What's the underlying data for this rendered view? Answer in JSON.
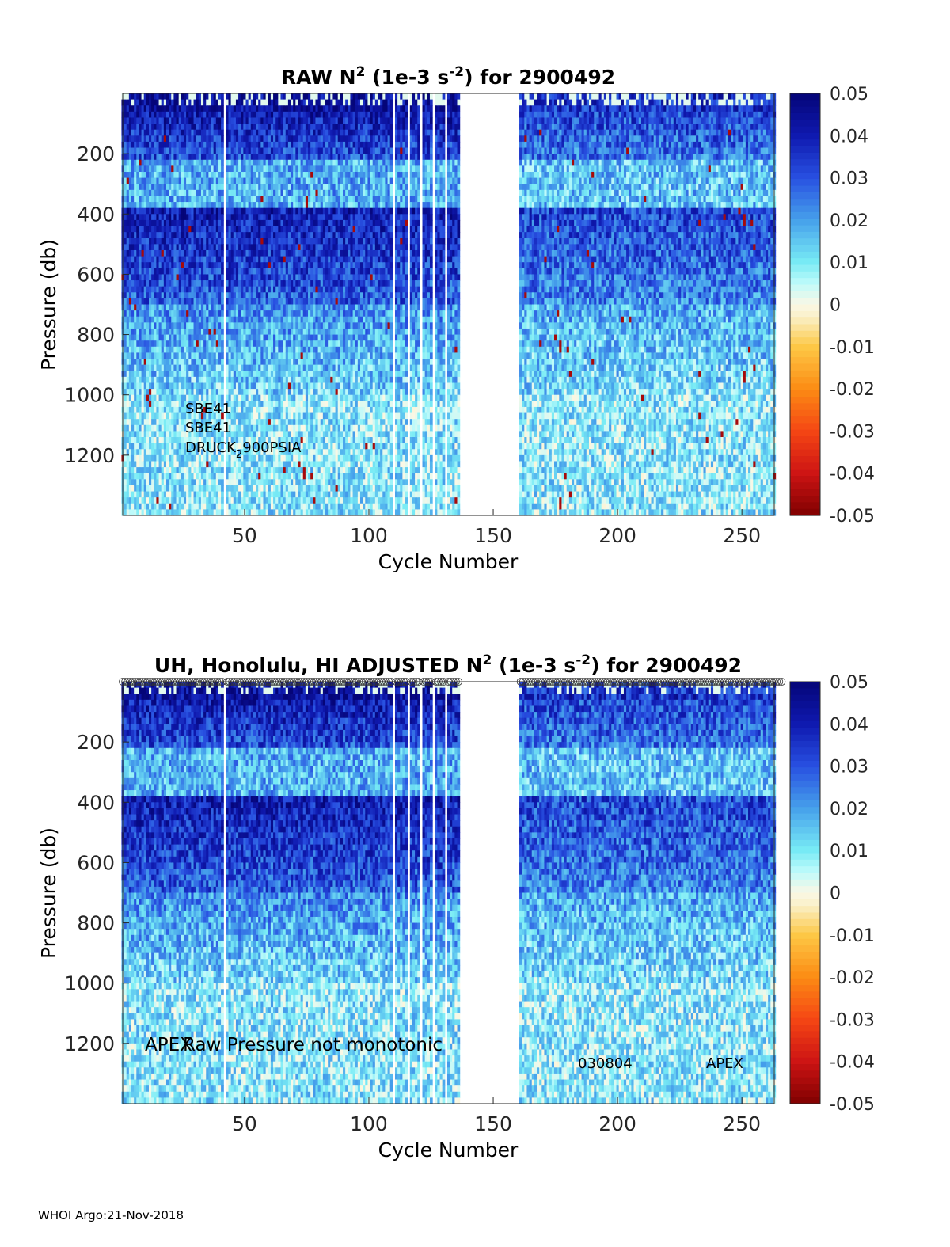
{
  "footer": "WHOI Argo:21-Nov-2018",
  "colorbar": {
    "ticks": [
      "0.05",
      "0.04",
      "0.03",
      "0.02",
      "0.01",
      "0",
      "-0.01",
      "-0.02",
      "-0.03",
      "-0.04",
      "-0.05"
    ],
    "range": [
      -0.05,
      0.05
    ],
    "colormap": "blue-cyan-white-yellow-red"
  },
  "chart_data": [
    {
      "type": "heatmap",
      "title": "RAW N² (1e-3 s⁻²) for 2900492",
      "title_parts": {
        "pre": "RAW N",
        "sup1": "2",
        "mid": " (1e-3 s",
        "sup2": "-2",
        "post": ") for 2900492"
      },
      "xlabel": "Cycle Number",
      "ylabel": "Pressure (db)",
      "xlim": [
        1,
        263
      ],
      "ylim": [
        1400,
        0
      ],
      "xticks": [
        "50",
        "100",
        "150",
        "200",
        "250"
      ],
      "yticks": [
        "200",
        "400",
        "600",
        "800",
        "1000",
        "1200"
      ],
      "zlim": [
        -0.05,
        0.05
      ],
      "missing_cycles": [
        42,
        110,
        116,
        121,
        126,
        131,
        137,
        138,
        139,
        140,
        141,
        142,
        143,
        144,
        145,
        146,
        147,
        148,
        149,
        150,
        151,
        152,
        153,
        154,
        155,
        156,
        157,
        158,
        159,
        160
      ],
      "annotations": [
        "SBE41",
        "SBE41",
        "DRUCK",
        "2",
        "900PSIA"
      ]
    },
    {
      "type": "heatmap",
      "title": "UH, Honolulu, HI  ADJUSTED N² (1e-3 s⁻²) for 2900492",
      "title_parts": {
        "pre": "UH, Honolulu, HI  ADJUSTED N",
        "sup1": "2",
        "mid": " (1e-3 s",
        "sup2": "-2",
        "post": ") for 2900492"
      },
      "xlabel": "Cycle Number",
      "ylabel": "Pressure (db)",
      "xlim": [
        1,
        263
      ],
      "ylim": [
        1400,
        0
      ],
      "xticks": [
        "50",
        "100",
        "150",
        "200",
        "250"
      ],
      "yticks": [
        "200",
        "400",
        "600",
        "800",
        "1000",
        "1200"
      ],
      "zlim": [
        -0.05,
        0.05
      ],
      "annotations": [
        "APEX",
        "Raw Pressure not monotonic",
        "030804",
        "APEX"
      ]
    }
  ]
}
